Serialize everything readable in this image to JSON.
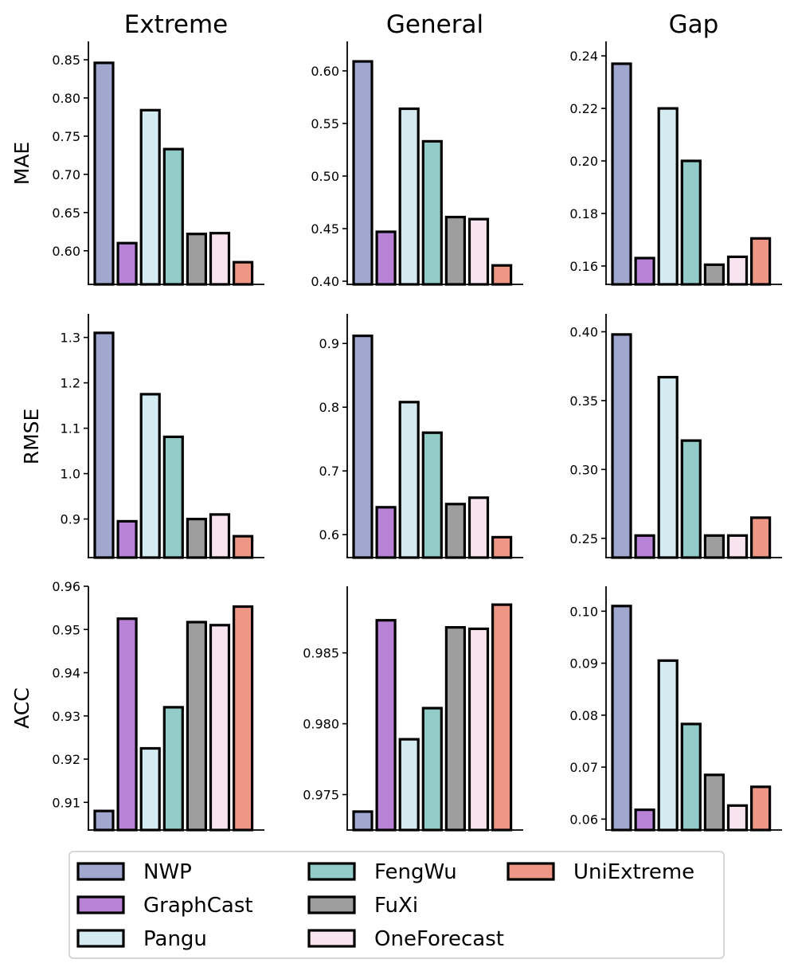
{
  "chart_data": {
    "type": "bar",
    "columns": [
      "Extreme",
      "General",
      "Gap"
    ],
    "rows": [
      "MAE",
      "RMSE",
      "ACC"
    ],
    "categories": [
      "NWP",
      "GraphCast",
      "Pangu",
      "FengWu",
      "FuXi",
      "OneForecast",
      "UniExtreme"
    ],
    "colors": [
      "#a0a8cf",
      "#b882d6",
      "#d4ebf1",
      "#92cbc8",
      "#9e9e9e",
      "#f8e4ee",
      "#ef9787"
    ],
    "legend": {
      "placement": "bottom",
      "columns": 3
    },
    "grid": false,
    "panels": [
      {
        "row": "MAE",
        "column": "Extreme",
        "ylim": [
          0.556,
          0.874
        ],
        "values": [
          0.846,
          0.61,
          0.784,
          0.733,
          0.622,
          0.623,
          0.585
        ],
        "ticks": [
          0.6,
          0.65,
          0.7,
          0.75,
          0.8,
          0.85
        ],
        "tick_labels": [
          "0.60",
          "0.65",
          "0.70",
          "0.75",
          "0.80",
          "0.85"
        ]
      },
      {
        "row": "MAE",
        "column": "General",
        "ylim": [
          0.397,
          0.628
        ],
        "values": [
          0.609,
          0.447,
          0.564,
          0.533,
          0.461,
          0.459,
          0.415
        ],
        "ticks": [
          0.4,
          0.45,
          0.5,
          0.55,
          0.6
        ],
        "tick_labels": [
          "0.40",
          "0.45",
          "0.50",
          "0.55",
          "0.60"
        ]
      },
      {
        "row": "MAE",
        "column": "Gap",
        "ylim": [
          0.153,
          0.2455
        ],
        "values": [
          0.237,
          0.163,
          0.22,
          0.2,
          0.1605,
          0.1635,
          0.1705
        ],
        "ticks": [
          0.16,
          0.18,
          0.2,
          0.22,
          0.24
        ],
        "tick_labels": [
          "0.16",
          "0.18",
          "0.20",
          "0.22",
          "0.24"
        ]
      },
      {
        "row": "RMSE",
        "column": "Extreme",
        "ylim": [
          0.815,
          1.352
        ],
        "values": [
          1.31,
          0.895,
          1.175,
          1.081,
          0.9,
          0.91,
          0.862
        ],
        "ticks": [
          0.9,
          1.0,
          1.1,
          1.2,
          1.3
        ],
        "tick_labels": [
          "0.9",
          "1.0",
          "1.1",
          "1.2",
          "1.3"
        ]
      },
      {
        "row": "RMSE",
        "column": "General",
        "ylim": [
          0.564,
          0.9465
        ],
        "values": [
          0.912,
          0.643,
          0.808,
          0.76,
          0.648,
          0.658,
          0.596
        ],
        "ticks": [
          0.6,
          0.7,
          0.8,
          0.9
        ],
        "tick_labels": [
          "0.6",
          "0.7",
          "0.8",
          "0.9"
        ]
      },
      {
        "row": "RMSE",
        "column": "Gap",
        "ylim": [
          0.236,
          0.413
        ],
        "values": [
          0.398,
          0.252,
          0.367,
          0.321,
          0.252,
          0.252,
          0.265
        ],
        "ticks": [
          0.25,
          0.3,
          0.35,
          0.4
        ],
        "tick_labels": [
          "0.25",
          "0.30",
          "0.35",
          "0.40"
        ]
      },
      {
        "row": "ACC",
        "column": "Extreme",
        "ylim": [
          0.9036,
          0.96
        ],
        "values": [
          0.908,
          0.9525,
          0.9225,
          0.932,
          0.9517,
          0.951,
          0.9553
        ],
        "ticks": [
          0.91,
          0.92,
          0.93,
          0.94,
          0.95,
          0.96
        ],
        "tick_labels": [
          "0.91",
          "0.92",
          "0.93",
          "0.94",
          "0.95",
          "0.96"
        ]
      },
      {
        "row": "ACC",
        "column": "General",
        "ylim": [
          0.9725,
          0.9897
        ],
        "values": [
          0.9738,
          0.9873,
          0.9789,
          0.9811,
          0.9868,
          0.9867,
          0.9884
        ],
        "ticks": [
          0.975,
          0.98,
          0.985
        ],
        "tick_labels": [
          "0.975",
          "0.980",
          "0.985"
        ]
      },
      {
        "row": "ACC",
        "column": "Gap",
        "ylim": [
          0.0579,
          0.1048
        ],
        "values": [
          0.101,
          0.0618,
          0.0905,
          0.0783,
          0.0685,
          0.0626,
          0.0662
        ],
        "ticks": [
          0.06,
          0.07,
          0.08,
          0.09,
          0.1
        ],
        "tick_labels": [
          "0.06",
          "0.07",
          "0.08",
          "0.09",
          "0.10"
        ]
      }
    ]
  }
}
